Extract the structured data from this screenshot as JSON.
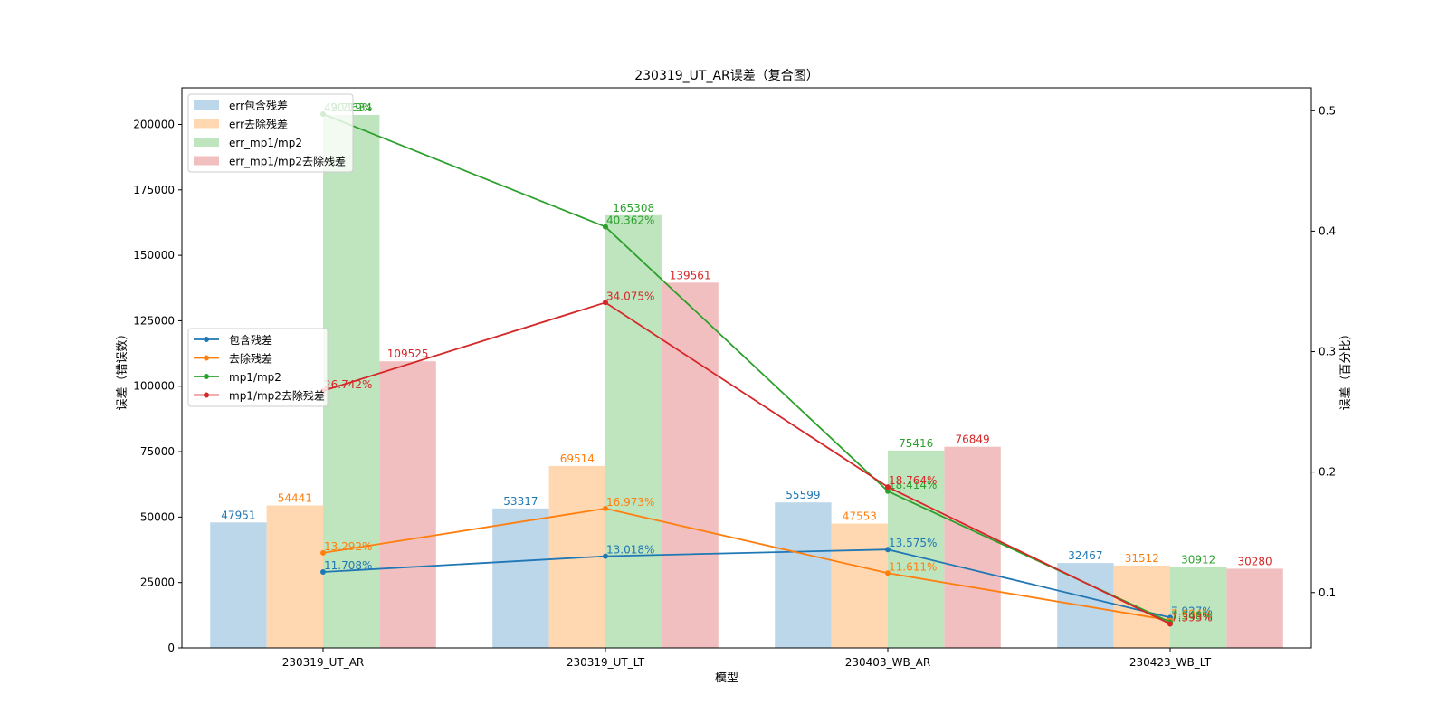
{
  "chart_data": {
    "type": "bar+line",
    "title": "230319_UT_AR误差（复合图）",
    "xlabel": "模型",
    "ylabel": "误差（错误数）",
    "y2label": "误差（百分比）",
    "categories": [
      "230319_UT_AR",
      "230319_UT_LT",
      "230403_WB_AR",
      "230423_WB_LT"
    ],
    "ylim": [
      0,
      214000
    ],
    "y2lim": [
      0.054,
      0.519
    ],
    "yticks": [
      0,
      25000,
      50000,
      75000,
      100000,
      125000,
      150000,
      175000,
      200000
    ],
    "y2ticks": [
      0.1,
      0.2,
      0.3,
      0.4,
      0.5
    ],
    "grid": false,
    "bar_series": [
      {
        "name": "err包含残差",
        "color": "#bcd6ea",
        "label_color": "#1f77b4",
        "values": [
          47951,
          53317,
          55599,
          32467
        ]
      },
      {
        "name": "err去除残差",
        "color": "#ffd8b2",
        "label_color": "#ff7f0e",
        "values": [
          54441,
          69514,
          47553,
          31512
        ]
      },
      {
        "name": "err_mp1/mp2",
        "color": "#bfe5bf",
        "label_color": "#2ca02c",
        "values": [
          203634,
          165308,
          75416,
          30912
        ]
      },
      {
        "name": "err_mp1/mp2去除残差",
        "color": "#f2bfc0",
        "label_color": "#d62728",
        "values": [
          109525,
          139561,
          76849,
          30280
        ]
      }
    ],
    "line_series": [
      {
        "name": "包含残差",
        "color": "#1f77b4",
        "values": [
          0.11708,
          0.13018,
          0.13575,
          0.07927
        ],
        "labels": [
          "11.708%",
          "13.018%",
          "13.575%",
          "7.927%"
        ]
      },
      {
        "name": "去除残差",
        "color": "#ff7f0e",
        "values": [
          0.13292,
          0.16973,
          0.11611,
          0.07694
        ],
        "labels": [
          "13.292%",
          "16.973%",
          "11.611%",
          "7.694%"
        ]
      },
      {
        "name": "mp1/mp2",
        "color": "#2ca02c",
        "values": [
          0.49719,
          0.40362,
          0.18414,
          0.07548
        ],
        "labels": [
          "49.719%",
          "40.362%",
          "18.414%",
          "7.548%"
        ]
      },
      {
        "name": "mp1/mp2去除残差",
        "color": "#d62728",
        "values": [
          0.26742,
          0.34075,
          0.18764,
          0.07393
        ],
        "labels": [
          "26.742%",
          "34.075%",
          "18.764%",
          "7.393%"
        ]
      }
    ],
    "legends": [
      "upper-left (bars)",
      "center-left (lines)"
    ]
  }
}
